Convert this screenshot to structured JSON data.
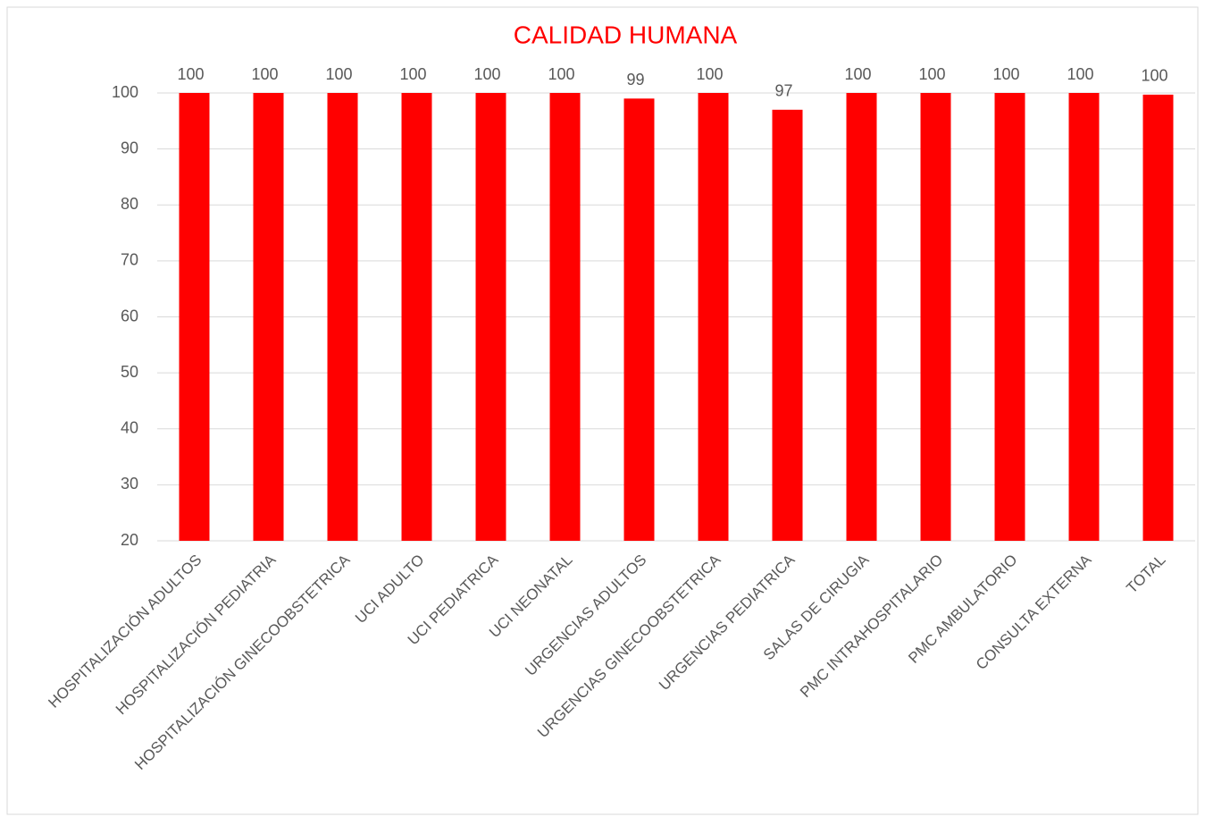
{
  "chart_data": {
    "type": "bar",
    "title": "CALIDAD HUMANA",
    "categories": [
      "HOSPITALIZACIÓN ADULTOS",
      "HOSPITALIZACIÓN PEDIATRIA",
      "HOSPITALIZACIÓN GINECOOBSTETRICA",
      "UCI ADULTO",
      "UCI PEDIATRICA",
      "UCI NEONATAL",
      "URGENCIAS ADULTOS",
      "URGENCIAS GINECOOBSTETRICA",
      "URGENCIAS PEDIATRICA",
      "SALAS DE CIRUGIA",
      "PMC INTRAHOSPITALARIO",
      "PMC AMBULATORIO",
      "CONSULTA EXTERNA",
      "TOTAL"
    ],
    "values": [
      100,
      100,
      100,
      100,
      100,
      100,
      99,
      100,
      97,
      100,
      100,
      100,
      100,
      99.7
    ],
    "value_labels": [
      "100",
      "100",
      "100",
      "100",
      "100",
      "100",
      "99",
      "100",
      "97",
      "100",
      "100",
      "100",
      "100",
      "100"
    ],
    "color": "#ff0000",
    "ylim": [
      20,
      100
    ],
    "yticks": [
      20,
      30,
      40,
      50,
      60,
      70,
      80,
      90,
      100
    ],
    "grid": true
  }
}
